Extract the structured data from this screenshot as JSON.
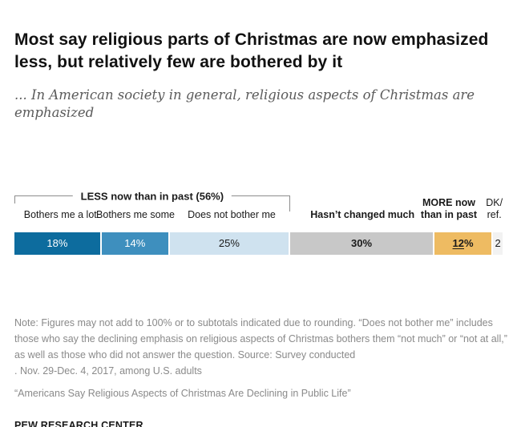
{
  "title": "Most say religious parts of Christmas are now emphasized\nless, but relatively few are bothered by it",
  "subtitle": "... In American society in general, religious aspects of Christmas are emphasized",
  "chart_data": {
    "type": "bar",
    "orientation": "horizontal-stacked",
    "total_units": 101,
    "bracket": {
      "label": "LESS now than in past (56%)",
      "subtotal_pct": 56,
      "covers": [
        "Bothers me a lot",
        "Bothers me some",
        "Does not bother me"
      ],
      "span_pct": 56.44
    },
    "segments": [
      {
        "label": "Bothers me a lot",
        "value": 18,
        "display": "18%",
        "color": "#0d6c9e",
        "text_color": "#ffffff",
        "value_bold": false,
        "label_bold": false,
        "underline": false
      },
      {
        "label": "Bothers me some",
        "value": 14,
        "display": "14%",
        "color": "#3e8fbe",
        "text_color": "#ffffff",
        "value_bold": false,
        "label_bold": false,
        "underline": false
      },
      {
        "label": "Does not bother me",
        "value": 25,
        "display": "25%",
        "color": "#cfe2ef",
        "text_color": "#1a1a1a",
        "value_bold": false,
        "label_bold": false,
        "underline": false
      },
      {
        "label": "Hasn’t changed much",
        "value": 30,
        "display": "30%",
        "color": "#c8c8c8",
        "text_color": "#1a1a1a",
        "value_bold": true,
        "label_bold": true,
        "underline": false
      },
      {
        "label": "MORE now\nthan in past",
        "value": 12,
        "display": "12%",
        "color": "#eebb62",
        "text_color": "#1a1a1a",
        "value_bold": true,
        "label_bold": true,
        "underline": true
      },
      {
        "label": "DK/\nref.",
        "value": 2,
        "display": "2",
        "color": "#f2f2f2",
        "text_color": "#1a1a1a",
        "value_bold": false,
        "label_bold": false,
        "underline": false
      }
    ],
    "label_center_pct": [
      9.4,
      24.8,
      44.5,
      71.3,
      89.0,
      98.3
    ],
    "legend_position": "above-bar",
    "grid": false
  },
  "note": "Note: Figures may not add to 100% or to subtotals indicated due to rounding. “Does not bother me” includes those who say the declining emphasis on religious aspects of Christmas bothers them “not much” or “not at all,” as well as those who did not answer the question. Source: Survey conducted\n. Nov. 29-Dec. 4, 2017, among U.S. adults",
  "quote": "“Americans Say Religious Aspects of Christmas Are Declining in Public Life”",
  "footer": "PEW RESEARCH CENTER"
}
